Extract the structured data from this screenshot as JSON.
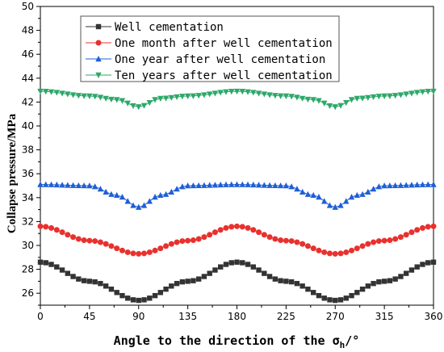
{
  "chart_data": {
    "type": "line",
    "xlabel_main": "Angle to the direction of the σ",
    "xlabel_sub": "h",
    "xlabel_tail": "/°",
    "ylabel": "Collapse pressure/MPa",
    "xlim": [
      0,
      360
    ],
    "ylim": [
      25,
      50
    ],
    "xticks": [
      0,
      45,
      90,
      135,
      180,
      225,
      270,
      315,
      360
    ],
    "yticks": [
      26,
      28,
      30,
      32,
      34,
      36,
      38,
      40,
      42,
      44,
      46,
      48,
      50
    ],
    "grid": false,
    "legend_position": "top-left",
    "series": [
      {
        "name": "Well cementation",
        "color": "#333333",
        "marker": "square",
        "x": [
          0,
          45,
          90,
          135,
          180,
          225,
          270,
          315,
          360
        ],
        "values": [
          28.6,
          27.0,
          25.4,
          27.0,
          28.6,
          27.0,
          25.4,
          27.0,
          28.6
        ]
      },
      {
        "name": "One month after well cementation",
        "color": "#e8312e",
        "marker": "circle",
        "x": [
          0,
          45,
          90,
          135,
          180,
          225,
          270,
          315,
          360
        ],
        "values": [
          31.6,
          30.4,
          29.3,
          30.4,
          31.6,
          30.4,
          29.3,
          30.4,
          31.6
        ]
      },
      {
        "name": "One year after well cementation",
        "color": "#1f5fd6",
        "marker": "triangle-up",
        "x": [
          0,
          45,
          70,
          90,
          110,
          135,
          180,
          225,
          250,
          270,
          290,
          315,
          360
        ],
        "values": [
          35.1,
          35.0,
          34.2,
          33.2,
          34.2,
          35.0,
          35.1,
          35.0,
          34.2,
          33.2,
          34.2,
          35.0,
          35.1
        ]
      },
      {
        "name": "Ten years after well cementation",
        "color": "#2ea86a",
        "marker": "triangle-down",
        "x": [
          0,
          45,
          70,
          90,
          110,
          135,
          180,
          225,
          250,
          270,
          290,
          315,
          360
        ],
        "values": [
          42.9,
          42.5,
          42.2,
          41.6,
          42.3,
          42.5,
          42.9,
          42.5,
          42.2,
          41.6,
          42.3,
          42.5,
          42.9
        ]
      }
    ]
  }
}
